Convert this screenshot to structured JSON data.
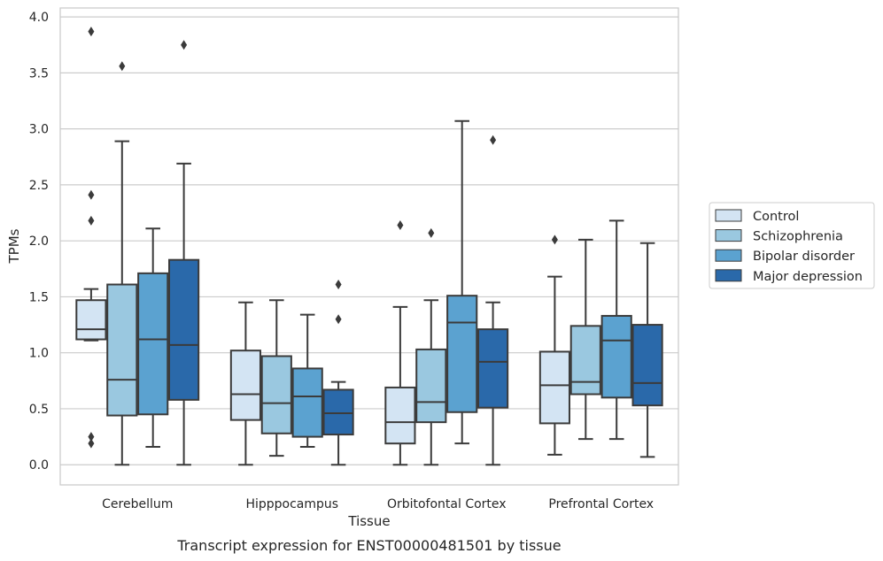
{
  "caption": "Transcript expression for ENST00000481501 by tissue",
  "chart_data": {
    "type": "box",
    "title": "",
    "xlabel": "Tissue",
    "ylabel": "TPMs",
    "ylim": [
      -0.18,
      4.08
    ],
    "yticks": [
      {
        "value": 0.0,
        "label": "0.0"
      },
      {
        "value": 0.5,
        "label": "0.5"
      },
      {
        "value": 1.0,
        "label": "1.0"
      },
      {
        "value": 1.5,
        "label": "1.5"
      },
      {
        "value": 2.0,
        "label": "2.0"
      },
      {
        "value": 2.5,
        "label": "2.5"
      },
      {
        "value": 3.0,
        "label": "3.0"
      },
      {
        "value": 3.5,
        "label": "3.5"
      },
      {
        "value": 4.0,
        "label": "4.0"
      }
    ],
    "grid": "horizontal",
    "legend_position": "right",
    "categories": [
      "Cerebellum",
      "Hipppocampus",
      "Orbitofontal Cortex",
      "Prefrontal Cortex"
    ],
    "series": [
      {
        "name": "Control",
        "color": "#d3e4f3",
        "boxes": [
          {
            "whisker_low": 1.11,
            "q1": 1.12,
            "median": 1.21,
            "q3": 1.47,
            "whisker_high": 1.57,
            "outliers": [
              2.41,
              2.18,
              0.25,
              0.19,
              3.87
            ]
          },
          {
            "whisker_low": 0.0,
            "q1": 0.4,
            "median": 0.63,
            "q3": 1.02,
            "whisker_high": 1.45,
            "outliers": []
          },
          {
            "whisker_low": 0.0,
            "q1": 0.19,
            "median": 0.38,
            "q3": 0.69,
            "whisker_high": 1.41,
            "outliers": [
              2.14
            ]
          },
          {
            "whisker_low": 0.09,
            "q1": 0.37,
            "median": 0.71,
            "q3": 1.01,
            "whisker_high": 1.68,
            "outliers": [
              2.01
            ]
          }
        ]
      },
      {
        "name": "Schizophrenia",
        "color": "#9ac8e0",
        "boxes": [
          {
            "whisker_low": 0.0,
            "q1": 0.44,
            "median": 0.76,
            "q3": 1.61,
            "whisker_high": 2.89,
            "outliers": [
              3.56
            ]
          },
          {
            "whisker_low": 0.08,
            "q1": 0.28,
            "median": 0.55,
            "q3": 0.97,
            "whisker_high": 1.47,
            "outliers": []
          },
          {
            "whisker_low": 0.0,
            "q1": 0.38,
            "median": 0.56,
            "q3": 1.03,
            "whisker_high": 1.47,
            "outliers": [
              2.07
            ]
          },
          {
            "whisker_low": 0.23,
            "q1": 0.63,
            "median": 0.74,
            "q3": 1.24,
            "whisker_high": 2.01,
            "outliers": []
          }
        ]
      },
      {
        "name": "Bipolar disorder",
        "color": "#5ba2d0",
        "boxes": [
          {
            "whisker_low": 0.16,
            "q1": 0.45,
            "median": 1.12,
            "q3": 1.71,
            "whisker_high": 2.11,
            "outliers": []
          },
          {
            "whisker_low": 0.16,
            "q1": 0.25,
            "median": 0.61,
            "q3": 0.86,
            "whisker_high": 1.34,
            "outliers": []
          },
          {
            "whisker_low": 0.19,
            "q1": 0.47,
            "median": 1.27,
            "q3": 1.51,
            "whisker_high": 3.07,
            "outliers": []
          },
          {
            "whisker_low": 0.23,
            "q1": 0.6,
            "median": 1.11,
            "q3": 1.33,
            "whisker_high": 2.18,
            "outliers": []
          }
        ]
      },
      {
        "name": "Major depression",
        "color": "#2a69aa",
        "boxes": [
          {
            "whisker_low": 0.0,
            "q1": 0.58,
            "median": 1.07,
            "q3": 1.83,
            "whisker_high": 2.69,
            "outliers": [
              3.75
            ]
          },
          {
            "whisker_low": 0.0,
            "q1": 0.27,
            "median": 0.46,
            "q3": 0.67,
            "whisker_high": 0.74,
            "outliers": [
              1.3,
              1.61
            ]
          },
          {
            "whisker_low": 0.0,
            "q1": 0.51,
            "median": 0.92,
            "q3": 1.21,
            "whisker_high": 1.45,
            "outliers": [
              2.9
            ]
          },
          {
            "whisker_low": 0.07,
            "q1": 0.53,
            "median": 0.73,
            "q3": 1.25,
            "whisker_high": 1.98,
            "outliers": []
          }
        ]
      }
    ],
    "style": {
      "line_color": "#3b3b3b",
      "grid_color": "#cccccc",
      "frame_color": "#c8c8c8"
    }
  }
}
